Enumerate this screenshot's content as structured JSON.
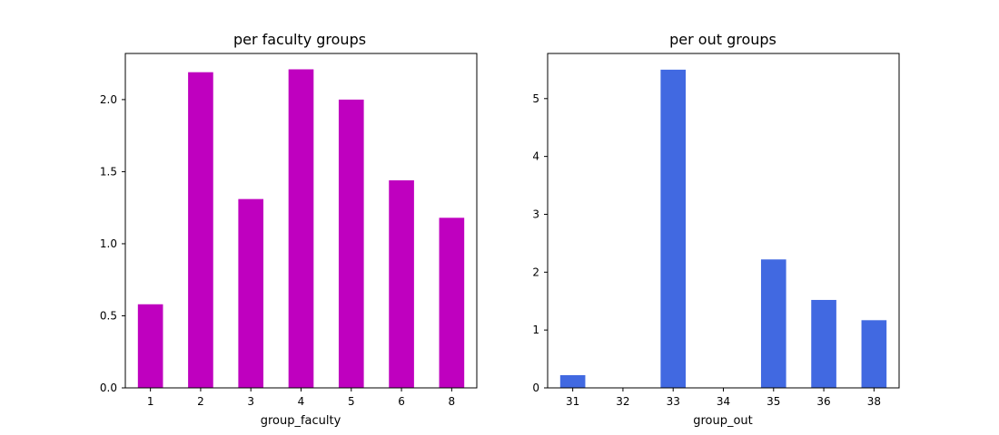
{
  "chart_data": [
    {
      "type": "bar",
      "title": "per faculty groups",
      "xlabel": "group_faculty",
      "ylabel": "",
      "categories": [
        "1",
        "2",
        "3",
        "4",
        "5",
        "6",
        "8"
      ],
      "values": [
        0.58,
        2.19,
        1.31,
        2.21,
        2.0,
        1.44,
        1.18
      ],
      "yticks": [
        0.0,
        0.5,
        1.0,
        1.5,
        2.0
      ],
      "ytick_labels": [
        "0.0",
        "0.5",
        "1.0",
        "1.5",
        "2.0"
      ],
      "ylim": [
        0,
        2.32
      ],
      "color": "#bf00bf",
      "grid": false
    },
    {
      "type": "bar",
      "title": "per out groups",
      "xlabel": "group_out",
      "ylabel": "",
      "categories": [
        "31",
        "32",
        "33",
        "34",
        "35",
        "36",
        "38"
      ],
      "values": [
        0.22,
        0.0,
        5.5,
        0.0,
        2.22,
        1.52,
        1.17
      ],
      "yticks": [
        0,
        1,
        2,
        3,
        4,
        5
      ],
      "ytick_labels": [
        "0",
        "1",
        "2",
        "3",
        "4",
        "5"
      ],
      "ylim": [
        0,
        5.78
      ],
      "color": "#4169e1",
      "grid": false
    }
  ]
}
